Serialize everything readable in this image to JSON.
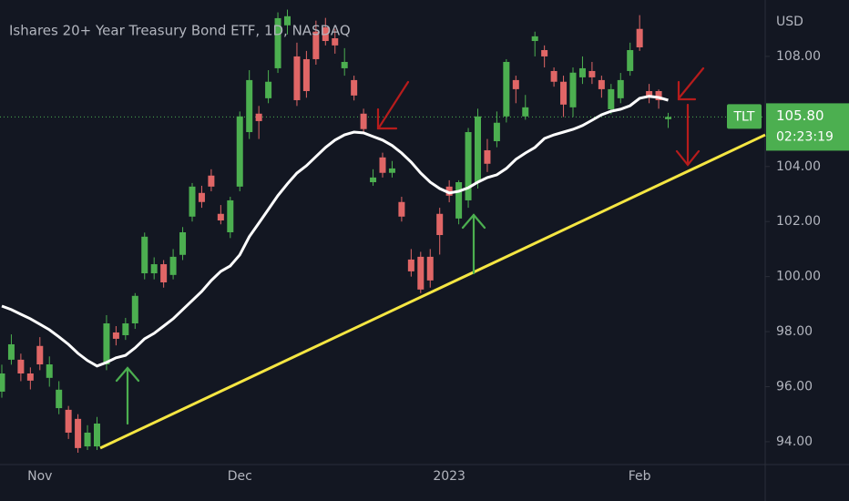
{
  "chart_data": {
    "type": "candlestick",
    "title": "Ishares 20+ Year Treasury Bond ETF, 1D, NASDAQ",
    "currency": "USD",
    "symbol": "TLT",
    "countdown": "02:23:19",
    "categories": [
      null,
      null,
      null,
      null,
      "Nov",
      null,
      null,
      null,
      null,
      null,
      null,
      null,
      null,
      null,
      null,
      null,
      null,
      null,
      null,
      null,
      null,
      null,
      null,
      null,
      null,
      "Dec",
      null,
      null,
      null,
      null,
      null,
      null,
      null,
      null,
      null,
      null,
      null,
      null,
      null,
      null,
      null,
      null,
      null,
      null,
      null,
      null,
      null,
      "2023",
      null,
      null,
      null,
      null,
      null,
      null,
      null,
      null,
      null,
      null,
      null,
      null,
      null,
      null,
      null,
      null,
      null,
      null,
      null,
      "Feb",
      null,
      null,
      null
    ],
    "open": [
      95.82,
      96.98,
      96.98,
      96.48,
      97.48,
      96.32,
      95.22,
      95.16,
      94.83,
      93.83,
      93.83,
      96.81,
      97.97,
      97.87,
      98.3,
      100.12,
      100.12,
      100.45,
      100.06,
      100.79,
      102.18,
      103.04,
      103.67,
      102.28,
      101.61,
      103.27,
      105.25,
      105.92,
      106.48,
      107.57,
      109.13,
      108.0,
      107.9,
      108.9,
      109.06,
      108.66,
      107.57,
      107.14,
      105.92,
      103.43,
      104.33,
      103.77,
      102.71,
      100.62,
      100.72,
      100.72,
      102.28,
      103.27,
      102.11,
      102.77,
      103.43,
      104.59,
      104.92,
      105.82,
      107.14,
      105.82,
      108.56,
      108.23,
      107.47,
      107.08,
      106.15,
      107.24,
      107.47,
      107.14,
      106.08,
      106.48,
      107.47,
      109.0,
      106.74,
      106.74,
      105.72
    ],
    "high": [
      96.8,
      97.9,
      97.2,
      96.7,
      97.8,
      97.1,
      96.2,
      95.3,
      95.0,
      94.6,
      94.9,
      98.6,
      98.2,
      98.5,
      99.4,
      101.6,
      100.7,
      100.6,
      101.0,
      101.8,
      103.4,
      103.3,
      103.9,
      102.6,
      102.9,
      106.0,
      107.5,
      106.2,
      107.5,
      109.6,
      109.7,
      108.5,
      108.2,
      109.3,
      109.4,
      109.0,
      108.3,
      107.3,
      106.1,
      103.9,
      104.5,
      104.2,
      102.9,
      101.0,
      100.9,
      101.0,
      102.5,
      103.5,
      103.5,
      105.4,
      106.1,
      105.0,
      106.0,
      107.9,
      107.3,
      106.6,
      108.9,
      108.4,
      107.6,
      107.3,
      107.6,
      108.0,
      107.8,
      107.3,
      107.0,
      107.4,
      108.5,
      109.5,
      107.0,
      106.8,
      105.95
    ],
    "low": [
      95.6,
      96.8,
      96.2,
      95.9,
      96.6,
      96.0,
      95.0,
      94.1,
      93.6,
      93.7,
      93.7,
      96.6,
      97.5,
      97.7,
      98.1,
      99.9,
      99.9,
      99.6,
      99.9,
      100.6,
      102.0,
      102.5,
      103.1,
      101.9,
      101.4,
      103.1,
      105.0,
      105.0,
      106.3,
      107.4,
      108.8,
      106.2,
      106.5,
      107.7,
      108.4,
      108.1,
      107.3,
      106.4,
      105.2,
      103.3,
      103.6,
      103.6,
      102.0,
      100.0,
      99.4,
      99.6,
      100.8,
      102.7,
      101.9,
      102.5,
      103.2,
      103.8,
      104.7,
      105.6,
      106.3,
      105.7,
      108.0,
      107.6,
      106.9,
      105.8,
      105.8,
      107.0,
      107.0,
      106.5,
      105.9,
      106.3,
      107.3,
      108.2,
      106.3,
      106.1,
      105.4
    ],
    "close": [
      96.48,
      97.54,
      96.48,
      96.22,
      96.81,
      96.81,
      95.89,
      94.33,
      93.77,
      94.33,
      94.66,
      98.3,
      97.74,
      98.3,
      99.3,
      101.45,
      100.45,
      99.79,
      100.72,
      101.61,
      103.27,
      102.71,
      103.27,
      102.04,
      102.77,
      105.82,
      107.14,
      105.65,
      107.08,
      109.39,
      109.46,
      106.41,
      106.74,
      107.9,
      108.56,
      108.4,
      107.8,
      106.58,
      105.36,
      103.6,
      103.77,
      103.93,
      102.18,
      100.19,
      99.53,
      99.86,
      101.51,
      102.94,
      103.43,
      105.25,
      105.82,
      104.1,
      105.59,
      107.8,
      106.81,
      106.15,
      108.73,
      108.0,
      107.08,
      106.25,
      107.41,
      107.57,
      107.24,
      106.81,
      106.81,
      107.14,
      108.23,
      108.33,
      106.55,
      106.41,
      105.8
    ],
    "up_color": "#4caf50",
    "down_color": "#e06666",
    "ma": {
      "color": "#ffffff",
      "values": [
        98.93,
        98.8,
        98.63,
        98.47,
        98.27,
        98.07,
        97.81,
        97.54,
        97.21,
        96.95,
        96.75,
        96.88,
        97.05,
        97.14,
        97.41,
        97.74,
        97.94,
        98.2,
        98.47,
        98.8,
        99.13,
        99.46,
        99.86,
        100.19,
        100.39,
        100.79,
        101.45,
        101.94,
        102.44,
        102.94,
        103.37,
        103.76,
        104.03,
        104.36,
        104.69,
        104.96,
        105.15,
        105.25,
        105.22,
        105.09,
        104.96,
        104.76,
        104.49,
        104.16,
        103.76,
        103.43,
        103.2,
        103.04,
        103.1,
        103.23,
        103.43,
        103.6,
        103.7,
        103.93,
        104.26,
        104.49,
        104.69,
        105.02,
        105.15,
        105.25,
        105.35,
        105.49,
        105.68,
        105.88,
        106.01,
        106.08,
        106.21,
        106.48,
        106.55,
        106.51,
        106.41
      ]
    },
    "trendline": {
      "color": "#f5e642",
      "x": [
        10.34,
        80.19
      ],
      "y": [
        93.77,
        105.15
      ]
    },
    "last_price": {
      "value": 105.8,
      "label": "105.80"
    },
    "xlim": [
      -0.19,
      80.19
    ],
    "ylim": [
      93.17,
      110.05
    ],
    "yticks": [
      {
        "value": 94,
        "label": "94.00"
      },
      {
        "value": 96,
        "label": "96.00"
      },
      {
        "value": 98,
        "label": "98.00"
      },
      {
        "value": 100,
        "label": "100.00"
      },
      {
        "value": 102,
        "label": "102.00"
      },
      {
        "value": 104,
        "label": "104.00"
      },
      {
        "value": 108,
        "label": "108.00"
      }
    ]
  }
}
